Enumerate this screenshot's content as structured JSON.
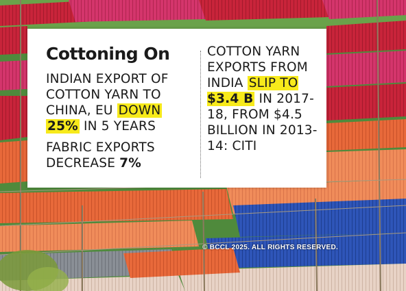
{
  "title": "Cottoning On",
  "left_column": {
    "stat1_a": "INDIAN EXPORT OF COTTON YARN TO CHINA, EU ",
    "stat1_hl_a": "DOWN",
    "stat1_hl_b": "25%",
    "stat1_b": " IN 5 YEARS",
    "stat2_a": "FABRIC EXPORTS DECREASE ",
    "stat2_bold": "7%"
  },
  "right_column": {
    "line_a": "COTTON YARN EXPORTS FROM INDIA ",
    "hl_a": "SLIP TO ",
    "hl_bold": "$3.4 B",
    "line_b": " IN 2017-18, FROM $4.5 BILLION IN 2013-14: CITI"
  },
  "copyright": "© BCCL 2025. ALL RIGHTS RESERVED.",
  "colors": {
    "highlight": "#f7ea1b",
    "red_yarn": "#c8243a",
    "orange_yarn": "#e8693a",
    "blue_yarn": "#2e55b8",
    "grass": "#4f8a3c"
  }
}
